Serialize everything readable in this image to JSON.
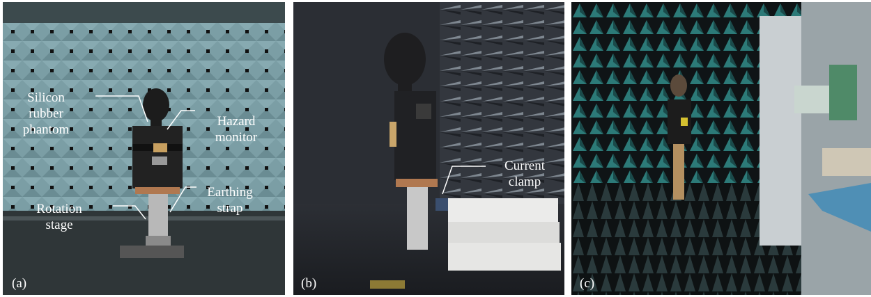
{
  "figure": {
    "panels": [
      {
        "tag": "(a)",
        "labels": {
          "phantom": [
            "Silicon",
            "rubber",
            "phantom"
          ],
          "monitor": [
            "Hazard",
            "monitor"
          ],
          "earthing": [
            "Earthing",
            "strap"
          ],
          "rotation": [
            "Rotation",
            "stage"
          ]
        }
      },
      {
        "tag": "(b)",
        "labels": {
          "clamp": [
            "Current",
            "clamp"
          ]
        }
      },
      {
        "tag": "(c)"
      }
    ]
  },
  "colors": {
    "absorber_light": "#7fa3aa",
    "absorber_dark": "#5a7c83",
    "chamber_dark": "#2a2d33",
    "pyramid_teal": "#2c7a78",
    "label_text": "#ffffff"
  }
}
